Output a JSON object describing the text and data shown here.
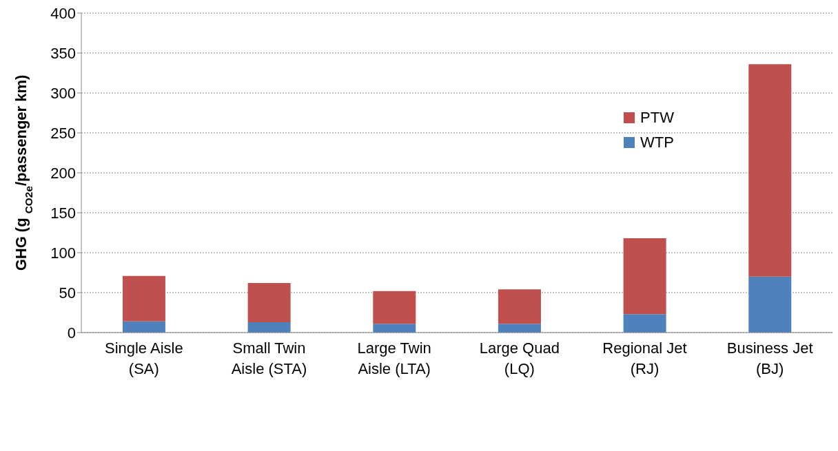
{
  "chart_data": {
    "type": "bar",
    "stacked": true,
    "ylabel": "GHG (g $_{CO2e}$/passenger km)",
    "categories": [
      "Single Aisle\n(SA)",
      "Small Twin\nAisle (STA)",
      "Large Twin\nAisle (LTA)",
      "Large Quad\n(LQ)",
      "Regional Jet\n(RJ)",
      "Business Jet\n(BJ)"
    ],
    "series": [
      {
        "name": "WTP",
        "color": "#4f81bd",
        "values": [
          14,
          13,
          11,
          11,
          23,
          70
        ]
      },
      {
        "name": "PTW",
        "color": "#c0504d",
        "values": [
          57,
          49,
          41,
          43,
          95,
          266
        ]
      }
    ],
    "ylim": [
      0,
      400
    ],
    "yticks": [
      0,
      50,
      100,
      150,
      200,
      250,
      300,
      350,
      400
    ],
    "grid": "y",
    "legend": "top right"
  }
}
